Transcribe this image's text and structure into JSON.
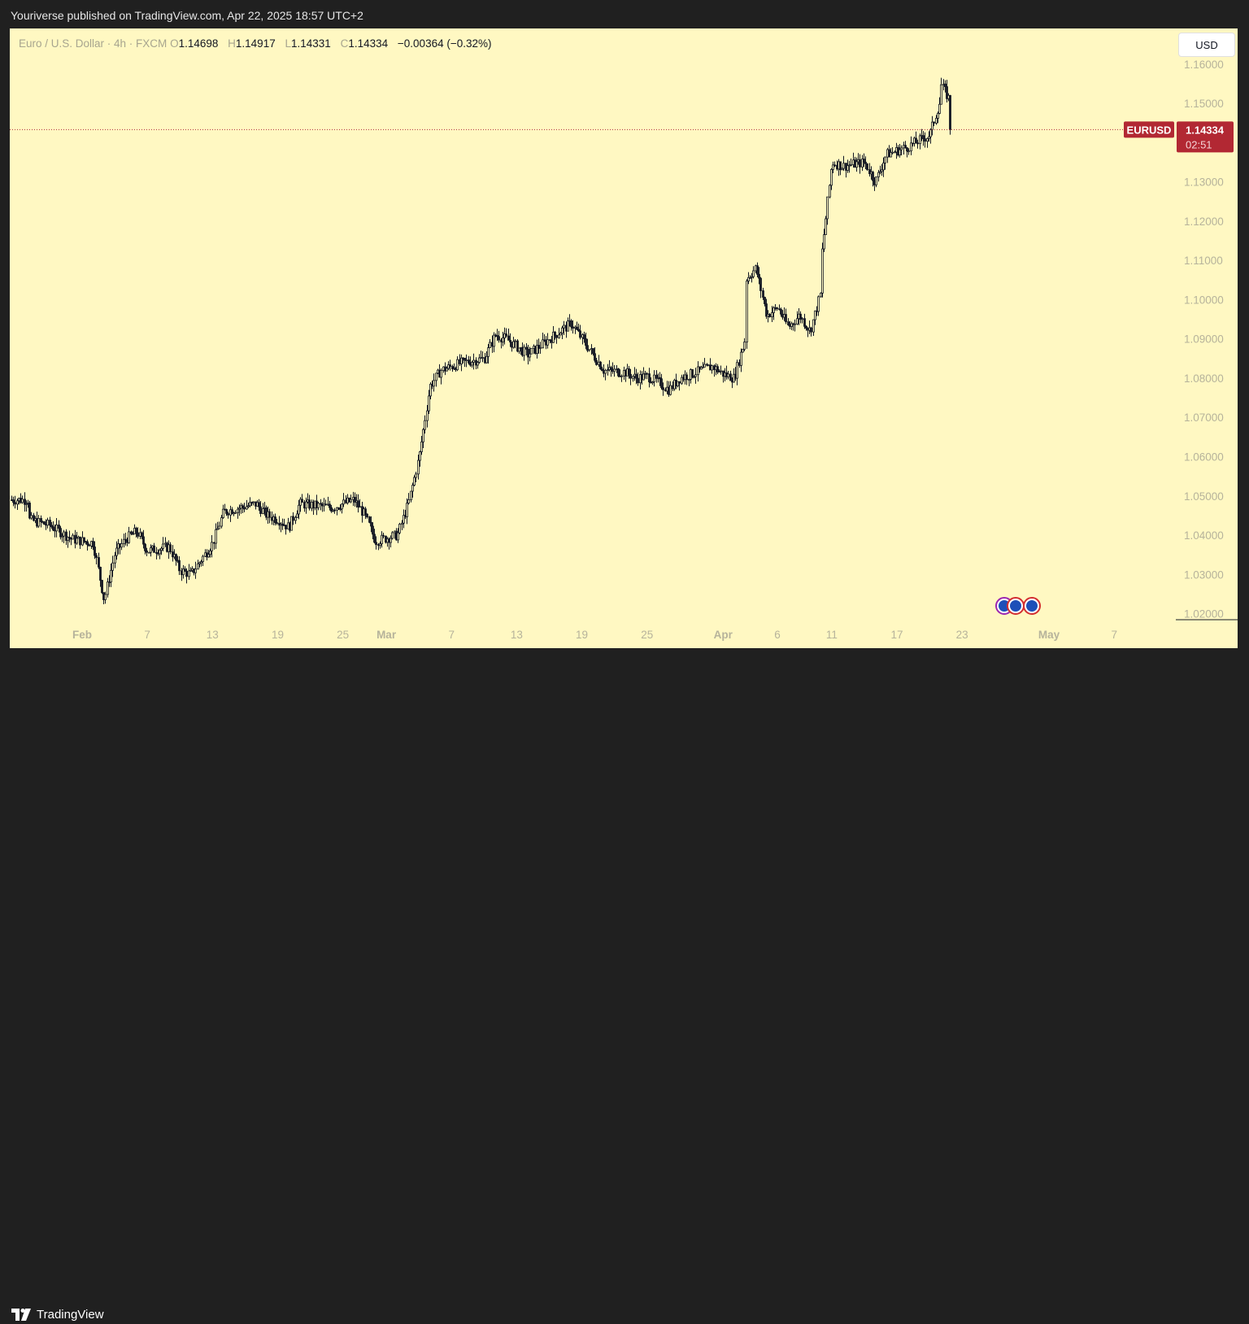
{
  "header": {
    "publish_text": "Youriverse published on TradingView.com, Apr 22, 2025 18:57 UTC+2"
  },
  "legend": {
    "symbol_text": "Euro / U.S. Dollar · 4h · FXCM",
    "open_key": "O",
    "open": "1.14698",
    "high_key": "H",
    "high": "1.14917",
    "low_key": "L",
    "low": "1.14331",
    "close_key": "C",
    "close": "1.14334",
    "change": "−0.00364 (−0.32%)"
  },
  "currency_button": "USD",
  "price_tag": {
    "symbol": "EURUSD",
    "price": "1.14334",
    "countdown": "02:51"
  },
  "footer": {
    "brand": "TradingView"
  },
  "events": [
    {
      "icon": "eu-flag-icon"
    },
    {
      "icon": "eu-flag-icon"
    },
    {
      "icon": "eu-flag-icon"
    }
  ],
  "colors": {
    "background": "#fff8c2",
    "candle": "#131722",
    "price_line": "#b22833",
    "price_tag_bg": "#b22833",
    "axis_text": "#b6b39b"
  },
  "chart_data": {
    "type": "candlestick",
    "symbol": "EURUSD",
    "timeframe": "4h",
    "ylim": [
      1.0112,
      1.1691
    ],
    "y_ticks": [
      "1.02000",
      "1.03000",
      "1.04000",
      "1.05000",
      "1.06000",
      "1.07000",
      "1.08000",
      "1.09000",
      "1.10000",
      "1.11000",
      "1.12000",
      "1.13000",
      "1.15000",
      "1.16000"
    ],
    "x_ticks": [
      {
        "label": "Feb",
        "date": "2025-02-01",
        "bold": true
      },
      {
        "label": "7",
        "date": "2025-02-07",
        "bold": false
      },
      {
        "label": "13",
        "date": "2025-02-13",
        "bold": false
      },
      {
        "label": "19",
        "date": "2025-02-19",
        "bold": false
      },
      {
        "label": "25",
        "date": "2025-02-25",
        "bold": false
      },
      {
        "label": "Mar",
        "date": "2025-03-01",
        "bold": true
      },
      {
        "label": "7",
        "date": "2025-03-07",
        "bold": false
      },
      {
        "label": "13",
        "date": "2025-03-13",
        "bold": false
      },
      {
        "label": "19",
        "date": "2025-03-19",
        "bold": false
      },
      {
        "label": "25",
        "date": "2025-03-25",
        "bold": false
      },
      {
        "label": "Apr",
        "date": "2025-04-01",
        "bold": true
      },
      {
        "label": "6",
        "date": "2025-04-06",
        "bold": false
      },
      {
        "label": "11",
        "date": "2025-04-11",
        "bold": false
      },
      {
        "label": "17",
        "date": "2025-04-17",
        "bold": false
      },
      {
        "label": "23",
        "date": "2025-04-23",
        "bold": false
      },
      {
        "label": "May",
        "date": "2025-05-01",
        "bold": true
      },
      {
        "label": "7",
        "date": "2025-05-07",
        "bold": false
      }
    ],
    "last_price": 1.14334,
    "close_path": [
      {
        "date": "2025-01-27",
        "close": 1.049
      },
      {
        "date": "2025-01-27",
        "close": 1.044
      },
      {
        "date": "2025-01-29",
        "close": 1.0425
      },
      {
        "date": "2025-01-31",
        "close": 1.039
      },
      {
        "date": "2025-02-02",
        "close": 1.038
      },
      {
        "date": "2025-02-03",
        "close": 1.0235
      },
      {
        "date": "2025-02-04",
        "close": 1.0355
      },
      {
        "date": "2025-02-05",
        "close": 1.039
      },
      {
        "date": "2025-02-06",
        "close": 1.041
      },
      {
        "date": "2025-02-07",
        "close": 1.036
      },
      {
        "date": "2025-02-09",
        "close": 1.037
      },
      {
        "date": "2025-02-10",
        "close": 1.031
      },
      {
        "date": "2025-02-11",
        "close": 1.03
      },
      {
        "date": "2025-02-13",
        "close": 1.038
      },
      {
        "date": "2025-02-14",
        "close": 1.046
      },
      {
        "date": "2025-02-17",
        "close": 1.048
      },
      {
        "date": "2025-02-18",
        "close": 1.045
      },
      {
        "date": "2025-02-19",
        "close": 1.044
      },
      {
        "date": "2025-02-20",
        "close": 1.042
      },
      {
        "date": "2025-02-21",
        "close": 1.048
      },
      {
        "date": "2025-02-24",
        "close": 1.047
      },
      {
        "date": "2025-02-25",
        "close": 1.048
      },
      {
        "date": "2025-02-26",
        "close": 1.049
      },
      {
        "date": "2025-02-27",
        "close": 1.045
      },
      {
        "date": "2025-02-28",
        "close": 1.0385
      },
      {
        "date": "2025-03-02",
        "close": 1.04
      },
      {
        "date": "2025-03-03",
        "close": 1.048
      },
      {
        "date": "2025-03-04",
        "close": 1.06
      },
      {
        "date": "2025-03-05",
        "close": 1.078
      },
      {
        "date": "2025-03-06",
        "close": 1.082
      },
      {
        "date": "2025-03-07",
        "close": 1.083
      },
      {
        "date": "2025-03-08",
        "close": 1.084
      },
      {
        "date": "2025-03-10",
        "close": 1.085
      },
      {
        "date": "2025-03-11",
        "close": 1.091
      },
      {
        "date": "2025-03-12",
        "close": 1.09
      },
      {
        "date": "2025-03-13",
        "close": 1.088
      },
      {
        "date": "2025-03-14",
        "close": 1.086
      },
      {
        "date": "2025-03-15",
        "close": 1.088
      },
      {
        "date": "2025-03-17",
        "close": 1.092
      },
      {
        "date": "2025-03-18",
        "close": 1.094
      },
      {
        "date": "2025-03-19",
        "close": 1.09
      },
      {
        "date": "2025-03-20",
        "close": 1.086
      },
      {
        "date": "2025-03-21",
        "close": 1.082
      },
      {
        "date": "2025-03-23",
        "close": 1.0815
      },
      {
        "date": "2025-03-24",
        "close": 1.08
      },
      {
        "date": "2025-03-25",
        "close": 1.0805
      },
      {
        "date": "2025-03-26",
        "close": 1.079
      },
      {
        "date": "2025-03-27",
        "close": 1.077
      },
      {
        "date": "2025-03-28",
        "close": 1.08
      },
      {
        "date": "2025-03-30",
        "close": 1.082
      },
      {
        "date": "2025-03-31",
        "close": 1.083
      },
      {
        "date": "2025-04-01",
        "close": 1.081
      },
      {
        "date": "2025-04-02",
        "close": 1.08
      },
      {
        "date": "2025-04-03",
        "close": 1.09
      },
      {
        "date": "2025-04-03",
        "close": 1.105
      },
      {
        "date": "2025-04-04",
        "close": 1.108
      },
      {
        "date": "2025-04-05",
        "close": 1.096
      },
      {
        "date": "2025-04-06",
        "close": 1.098
      },
      {
        "date": "2025-04-07",
        "close": 1.093
      },
      {
        "date": "2025-04-08",
        "close": 1.096
      },
      {
        "date": "2025-04-09",
        "close": 1.092
      },
      {
        "date": "2025-04-10",
        "close": 1.102
      },
      {
        "date": "2025-04-10",
        "close": 1.11
      },
      {
        "date": "2025-04-11",
        "close": 1.135
      },
      {
        "date": "2025-04-12",
        "close": 1.134
      },
      {
        "date": "2025-04-14",
        "close": 1.135
      },
      {
        "date": "2025-04-15",
        "close": 1.13
      },
      {
        "date": "2025-04-16",
        "close": 1.137
      },
      {
        "date": "2025-04-17",
        "close": 1.138
      },
      {
        "date": "2025-04-18",
        "close": 1.139
      },
      {
        "date": "2025-04-20",
        "close": 1.142
      },
      {
        "date": "2025-04-21",
        "close": 1.151
      },
      {
        "date": "2025-04-21",
        "close": 1.155
      },
      {
        "date": "2025-04-22",
        "close": 1.15
      },
      {
        "date": "2025-04-22",
        "close": 1.14334
      }
    ]
  }
}
